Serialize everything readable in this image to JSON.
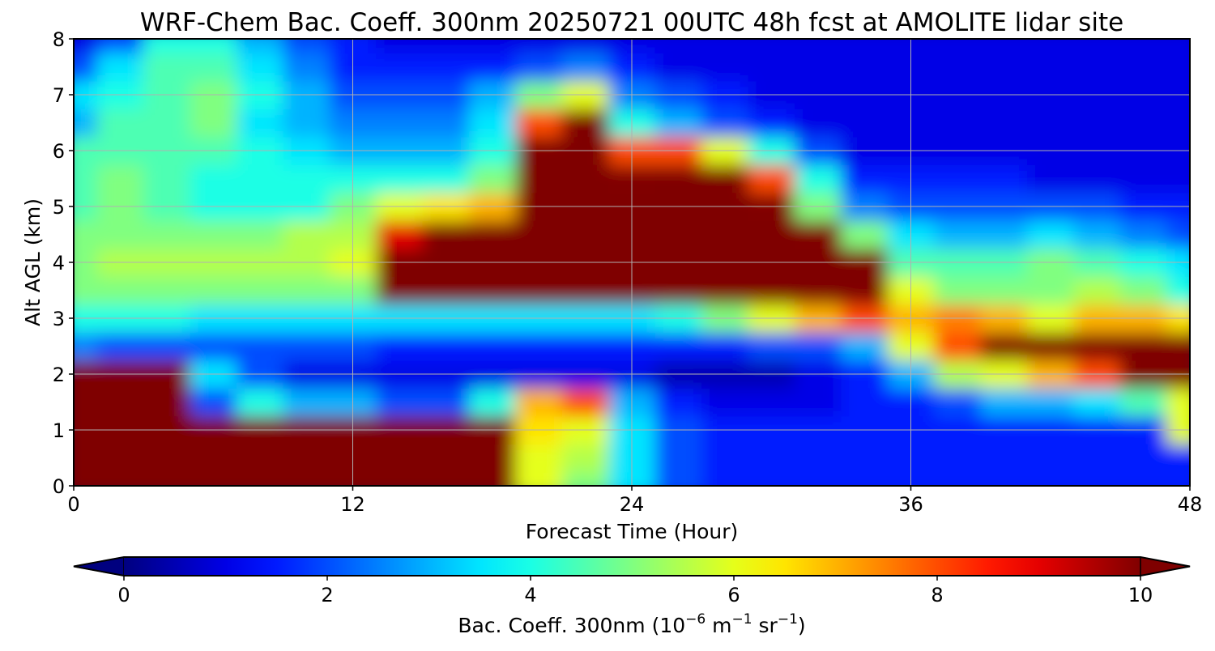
{
  "chart_data": {
    "type": "heatmap",
    "title": "WRF-Chem Bac. Coeff. 300nm  20250721 00UTC 48h fcst at AMOLITE lidar site",
    "xlabel": "Forecast Time (Hour)",
    "ylabel": "Alt AGL (km)",
    "xlim": [
      0,
      48
    ],
    "ylim": [
      0,
      8
    ],
    "xticks": [
      0,
      12,
      24,
      36,
      48
    ],
    "yticks": [
      0,
      1,
      2,
      3,
      4,
      5,
      6,
      7,
      8
    ],
    "grid": true,
    "colorbar": {
      "label_prefix": "Bac. Coeff. 300nm  (10",
      "label_exp1": "−6",
      "label_mid": " m",
      "label_exp2": "−1",
      "label_mid2": " sr",
      "label_exp3": "−1",
      "label_suffix": ")",
      "range": [
        0,
        10
      ],
      "ticks": [
        0,
        2,
        4,
        6,
        8,
        10
      ],
      "colormap": "jet",
      "extend": "both",
      "under_color": "#00007f",
      "over_color": "#7f0000"
    },
    "x": [
      0,
      2,
      4,
      6,
      8,
      10,
      12,
      14,
      16,
      18,
      20,
      22,
      24,
      26,
      28,
      30,
      32,
      34,
      36,
      38,
      40,
      42,
      44,
      46,
      48
    ],
    "y": [
      0,
      0.5,
      1,
      1.5,
      2,
      2.5,
      3,
      3.5,
      4,
      4.5,
      5,
      5.5,
      6,
      6.5,
      7,
      7.5,
      8
    ],
    "z": [
      [
        11,
        11,
        11,
        11,
        11,
        11,
        11,
        11,
        11,
        11,
        6,
        5,
        3.5,
        2,
        1.5,
        1.5,
        1.5,
        1.5,
        1.5,
        1.5,
        1.5,
        1.5,
        1.5,
        1.5,
        1.5
      ],
      [
        11,
        11,
        11,
        11,
        11,
        11,
        11,
        11,
        11,
        11,
        6,
        5.5,
        3.5,
        2,
        1.5,
        1.5,
        1.5,
        1.5,
        1.5,
        1.5,
        1.5,
        1.5,
        1.5,
        1.5,
        1.5
      ],
      [
        11,
        11,
        11,
        11,
        11,
        11,
        11,
        11,
        11,
        11,
        6.5,
        6,
        3.5,
        2,
        1.5,
        1.5,
        1.5,
        1.5,
        1.5,
        1.5,
        1.5,
        1.5,
        1.5,
        1.5,
        6
      ],
      [
        11,
        11,
        11,
        2,
        4,
        3,
        3,
        2,
        2,
        4,
        7,
        8,
        3,
        1.5,
        1,
        1,
        1,
        1.5,
        1.5,
        2,
        3,
        3,
        3.5,
        4.5,
        6
      ],
      [
        11,
        11,
        11,
        3.5,
        2,
        1,
        1,
        1,
        1,
        1,
        1,
        1,
        1,
        0.5,
        0.5,
        0.5,
        1,
        1.5,
        3,
        5.5,
        6,
        7,
        8,
        11,
        11
      ],
      [
        2.5,
        2,
        2,
        2,
        2,
        2,
        2,
        1.5,
        1.5,
        1.5,
        1.5,
        1.5,
        1.5,
        1.5,
        1.5,
        2,
        2,
        3,
        6,
        8,
        10,
        11,
        11,
        11,
        11
      ],
      [
        4,
        4,
        4,
        3.5,
        3.5,
        3.5,
        3.5,
        3.5,
        3.5,
        3.5,
        3.5,
        3.5,
        3.5,
        4,
        5,
        6,
        7,
        8,
        7,
        7.5,
        7,
        6,
        7,
        7,
        6.5
      ],
      [
        5,
        5,
        5,
        5,
        5,
        5,
        5,
        11,
        11,
        11,
        11,
        11,
        11,
        11,
        11,
        11,
        11,
        11,
        6,
        5,
        5,
        5,
        5.5,
        5,
        4
      ],
      [
        5,
        5.5,
        5.5,
        5.5,
        5.5,
        5.5,
        6,
        11,
        11,
        11,
        11,
        11,
        11,
        11,
        11,
        11,
        11,
        11,
        4.5,
        4.5,
        4.5,
        5,
        4.5,
        4,
        3.5
      ],
      [
        5,
        5,
        5,
        5,
        5,
        5.5,
        5.5,
        9,
        11,
        11,
        11,
        11,
        11,
        11,
        11,
        11,
        10,
        5,
        3.5,
        3,
        3,
        3.5,
        3,
        2.5,
        2
      ],
      [
        4.5,
        5,
        4.5,
        4,
        4,
        4,
        5,
        6,
        6.5,
        7,
        11,
        11,
        11,
        11,
        11,
        10,
        5,
        2.5,
        2,
        2,
        2,
        2,
        2,
        1.5,
        1.5
      ],
      [
        4.5,
        5,
        4.5,
        4,
        4,
        4,
        4,
        4,
        4,
        5,
        11,
        11,
        10,
        11,
        11,
        8,
        4,
        1.5,
        1.5,
        1.5,
        1.5,
        1,
        1,
        1,
        1
      ],
      [
        4.5,
        4.5,
        4.5,
        4.5,
        4,
        3.5,
        3,
        3,
        3,
        4,
        11,
        11,
        8,
        8,
        6,
        4,
        2,
        1,
        1,
        1,
        1,
        1,
        1,
        1,
        1
      ],
      [
        3,
        4.5,
        4.5,
        5,
        3.5,
        3,
        2.5,
        2.5,
        2.5,
        3.5,
        8,
        11,
        4,
        3,
        2,
        1.5,
        1,
        1,
        1,
        1,
        1,
        1,
        1,
        1,
        1
      ],
      [
        3.5,
        4,
        4.5,
        5,
        4,
        3,
        2,
        2,
        2,
        3,
        5,
        6,
        2.5,
        2,
        1.5,
        1,
        1,
        1,
        1,
        1,
        1,
        1,
        1,
        1,
        1
      ],
      [
        2,
        3.5,
        4.5,
        4.5,
        3.5,
        2.5,
        1.5,
        1.5,
        1.5,
        1.5,
        2,
        2.5,
        1.5,
        1,
        1,
        1,
        1,
        1,
        1,
        1,
        1,
        1,
        1,
        1,
        1
      ],
      [
        1,
        2,
        4,
        4,
        3,
        2,
        1.5,
        1,
        1,
        1,
        1,
        1,
        1,
        1,
        1,
        1,
        1,
        1,
        1,
        1,
        1,
        1,
        1,
        1,
        1
      ]
    ]
  }
}
